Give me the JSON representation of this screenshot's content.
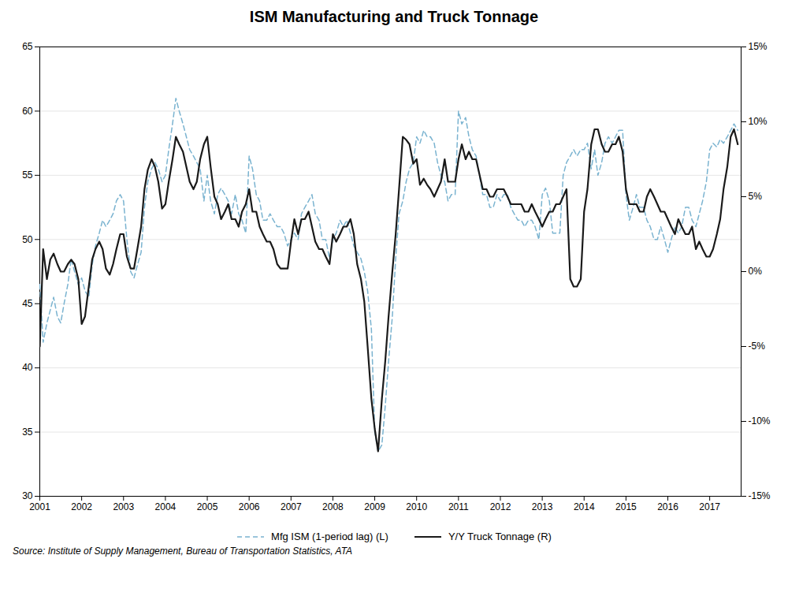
{
  "chart_data": {
    "type": "line",
    "title": "ISM Manufacturing and Truck Tonnage",
    "caption": "Source: Institute of Supply Management, Bureau of Transportation Statistics, ATA",
    "xlim": [
      2001,
      2017.75
    ],
    "xticks": [
      2001,
      2002,
      2003,
      2004,
      2005,
      2006,
      2007,
      2008,
      2009,
      2010,
      2011,
      2012,
      2013,
      2014,
      2015,
      2016,
      2017
    ],
    "ylim": [
      30,
      65
    ],
    "yticks": [
      30,
      35,
      40,
      45,
      50,
      55,
      60,
      65
    ],
    "y2lim": [
      -15,
      15
    ],
    "y2ticks": [
      {
        "value": -15,
        "label": "-15%"
      },
      {
        "value": -10,
        "label": "-10%"
      },
      {
        "value": -5,
        "label": "-5%"
      },
      {
        "value": 0,
        "label": "0%"
      },
      {
        "value": 5,
        "label": "5%"
      },
      {
        "value": 10,
        "label": "10%"
      },
      {
        "value": 15,
        "label": "15%"
      }
    ],
    "grid": true,
    "legend": "bottom",
    "x": [
      2001.0,
      2001.08,
      2001.17,
      2001.25,
      2001.33,
      2001.42,
      2001.5,
      2001.58,
      2001.67,
      2001.75,
      2001.83,
      2001.92,
      2002.0,
      2002.08,
      2002.17,
      2002.25,
      2002.33,
      2002.42,
      2002.5,
      2002.58,
      2002.67,
      2002.75,
      2002.83,
      2002.92,
      2003.0,
      2003.08,
      2003.17,
      2003.25,
      2003.33,
      2003.42,
      2003.5,
      2003.58,
      2003.67,
      2003.75,
      2003.83,
      2003.92,
      2004.0,
      2004.08,
      2004.17,
      2004.25,
      2004.33,
      2004.42,
      2004.5,
      2004.58,
      2004.67,
      2004.75,
      2004.83,
      2004.92,
      2005.0,
      2005.08,
      2005.17,
      2005.25,
      2005.33,
      2005.42,
      2005.5,
      2005.58,
      2005.67,
      2005.75,
      2005.83,
      2005.92,
      2006.0,
      2006.08,
      2006.17,
      2006.25,
      2006.33,
      2006.42,
      2006.5,
      2006.58,
      2006.67,
      2006.75,
      2006.83,
      2006.92,
      2007.0,
      2007.08,
      2007.17,
      2007.25,
      2007.33,
      2007.42,
      2007.5,
      2007.58,
      2007.67,
      2007.75,
      2007.83,
      2007.92,
      2008.0,
      2008.08,
      2008.17,
      2008.25,
      2008.33,
      2008.42,
      2008.5,
      2008.58,
      2008.67,
      2008.75,
      2008.83,
      2008.92,
      2009.0,
      2009.08,
      2009.17,
      2009.25,
      2009.33,
      2009.42,
      2009.5,
      2009.58,
      2009.67,
      2009.75,
      2009.83,
      2009.92,
      2010.0,
      2010.08,
      2010.17,
      2010.25,
      2010.33,
      2010.42,
      2010.5,
      2010.58,
      2010.67,
      2010.75,
      2010.83,
      2010.92,
      2011.0,
      2011.08,
      2011.17,
      2011.25,
      2011.33,
      2011.42,
      2011.5,
      2011.58,
      2011.67,
      2011.75,
      2011.83,
      2011.92,
      2012.0,
      2012.08,
      2012.17,
      2012.25,
      2012.33,
      2012.42,
      2012.5,
      2012.58,
      2012.67,
      2012.75,
      2012.83,
      2012.92,
      2013.0,
      2013.08,
      2013.17,
      2013.25,
      2013.33,
      2013.42,
      2013.5,
      2013.58,
      2013.67,
      2013.75,
      2013.83,
      2013.92,
      2014.0,
      2014.08,
      2014.17,
      2014.25,
      2014.33,
      2014.42,
      2014.5,
      2014.58,
      2014.67,
      2014.75,
      2014.83,
      2014.92,
      2015.0,
      2015.08,
      2015.17,
      2015.25,
      2015.33,
      2015.42,
      2015.5,
      2015.58,
      2015.67,
      2015.75,
      2015.83,
      2015.92,
      2016.0,
      2016.08,
      2016.17,
      2016.25,
      2016.33,
      2016.42,
      2016.5,
      2016.58,
      2016.67,
      2016.75,
      2016.83,
      2016.92,
      2017.0,
      2017.08,
      2017.17,
      2017.25,
      2017.33,
      2017.42,
      2017.5,
      2017.58,
      2017.67
    ],
    "series": [
      {
        "name": "Mfg ISM (1-period lag) (L)",
        "color": "#7ab3d0",
        "line_style": "dashed",
        "values": [
          46.5,
          42.0,
          43.5,
          44.5,
          45.5,
          44.0,
          43.5,
          45.0,
          46.5,
          48.5,
          47.5,
          46.5,
          47.0,
          46.0,
          45.5,
          48.0,
          49.5,
          50.5,
          51.5,
          51.0,
          51.5,
          52.0,
          53.0,
          53.5,
          53.0,
          50.0,
          47.5,
          47.0,
          48.0,
          49.0,
          52.5,
          54.5,
          55.5,
          56.0,
          55.5,
          54.5,
          55.0,
          57.0,
          59.0,
          61.0,
          60.0,
          59.0,
          58.0,
          57.0,
          56.5,
          56.0,
          55.5,
          53.0,
          55.0,
          53.0,
          52.0,
          53.5,
          54.0,
          53.5,
          53.0,
          52.0,
          53.5,
          52.0,
          51.5,
          50.5,
          56.5,
          55.5,
          53.5,
          53.0,
          51.5,
          51.5,
          52.0,
          51.5,
          51.0,
          51.0,
          50.5,
          49.5,
          50.0,
          50.5,
          50.0,
          52.0,
          52.5,
          53.0,
          53.5,
          52.0,
          51.5,
          50.0,
          50.0,
          48.5,
          50.0,
          50.5,
          51.5,
          51.0,
          51.5,
          50.5,
          49.5,
          49.0,
          48.5,
          47.5,
          46.0,
          43.0,
          35.0,
          33.5,
          34.0,
          37.0,
          40.5,
          44.0,
          48.5,
          52.0,
          53.0,
          54.5,
          55.5,
          56.0,
          58.0,
          57.5,
          58.5,
          58.0,
          58.0,
          57.5,
          56.0,
          55.0,
          54.5,
          53.0,
          53.5,
          53.5,
          60.0,
          59.0,
          59.5,
          58.0,
          57.0,
          56.5,
          55.0,
          53.5,
          53.5,
          52.5,
          52.5,
          53.5,
          53.0,
          53.5,
          53.5,
          52.5,
          52.0,
          51.5,
          51.5,
          51.0,
          51.5,
          51.5,
          51.0,
          50.0,
          53.5,
          54.0,
          53.0,
          50.5,
          50.5,
          50.5,
          55.0,
          56.0,
          56.5,
          57.0,
          56.5,
          57.0,
          57.0,
          57.5,
          55.5,
          57.0,
          55.0,
          56.0,
          57.5,
          58.0,
          57.5,
          58.0,
          58.5,
          58.5,
          53.5,
          51.5,
          52.5,
          53.5,
          52.5,
          52.5,
          51.5,
          51.0,
          50.0,
          50.0,
          51.0,
          50.0,
          49.0,
          50.0,
          51.0,
          50.5,
          51.0,
          52.5,
          52.5,
          51.5,
          51.0,
          52.0,
          53.0,
          54.5,
          57.0,
          57.5,
          57.2,
          57.8,
          57.5,
          58.0,
          58.5,
          59.0,
          58.5
        ]
      },
      {
        "name": "Y/Y Truck Tonnage (R)",
        "color": "#1a1a1a",
        "line_style": "solid",
        "axis": "y2",
        "values": [
          -5.0,
          1.5,
          -0.5,
          0.8,
          1.2,
          0.5,
          0.0,
          0.0,
          0.5,
          0.8,
          0.5,
          -0.5,
          -3.5,
          -3.0,
          -1.0,
          0.8,
          1.5,
          2.0,
          1.5,
          0.2,
          -0.2,
          0.5,
          1.5,
          2.5,
          2.5,
          1.0,
          0.2,
          0.2,
          1.5,
          3.0,
          5.5,
          6.8,
          7.5,
          7.0,
          6.0,
          4.2,
          4.5,
          6.0,
          7.5,
          9.0,
          8.5,
          8.0,
          7.0,
          6.0,
          5.5,
          6.0,
          7.5,
          8.5,
          9.0,
          7.0,
          5.0,
          4.5,
          3.5,
          4.0,
          4.5,
          3.5,
          3.5,
          3.0,
          4.0,
          4.5,
          5.5,
          4.0,
          4.0,
          3.0,
          2.5,
          2.0,
          2.0,
          1.5,
          0.5,
          0.2,
          0.2,
          0.2,
          2.0,
          3.5,
          2.5,
          3.5,
          3.5,
          4.0,
          3.0,
          2.0,
          1.5,
          1.5,
          1.0,
          0.5,
          2.5,
          2.0,
          2.5,
          3.0,
          3.0,
          3.5,
          2.5,
          0.5,
          -0.5,
          -2.0,
          -5.0,
          -8.5,
          -10.5,
          -12.0,
          -8.5,
          -6.0,
          -3.0,
          0.0,
          2.5,
          5.5,
          9.0,
          8.8,
          8.5,
          7.2,
          7.5,
          5.8,
          6.2,
          5.8,
          5.5,
          5.0,
          5.5,
          6.0,
          7.5,
          6.0,
          6.0,
          6.0,
          7.5,
          8.5,
          7.5,
          8.0,
          7.5,
          7.5,
          6.5,
          5.5,
          5.5,
          5.0,
          5.0,
          5.5,
          5.5,
          5.5,
          5.0,
          4.5,
          4.5,
          4.5,
          4.5,
          4.0,
          4.0,
          4.5,
          4.0,
          3.5,
          3.0,
          3.5,
          4.0,
          4.0,
          4.5,
          4.5,
          5.0,
          5.5,
          -0.5,
          -1.0,
          -1.0,
          -0.5,
          4.0,
          5.5,
          8.5,
          9.5,
          9.5,
          8.5,
          8.0,
          8.0,
          8.5,
          8.5,
          9.0,
          8.0,
          5.5,
          4.5,
          4.5,
          4.5,
          4.0,
          4.0,
          5.0,
          5.5,
          5.0,
          4.5,
          4.0,
          4.0,
          3.5,
          3.0,
          2.5,
          3.5,
          3.0,
          2.5,
          2.5,
          3.0,
          1.5,
          2.0,
          1.5,
          1.0,
          1.0,
          1.5,
          2.5,
          3.5,
          5.5,
          7.0,
          9.0,
          9.5,
          8.5
        ]
      }
    ]
  }
}
